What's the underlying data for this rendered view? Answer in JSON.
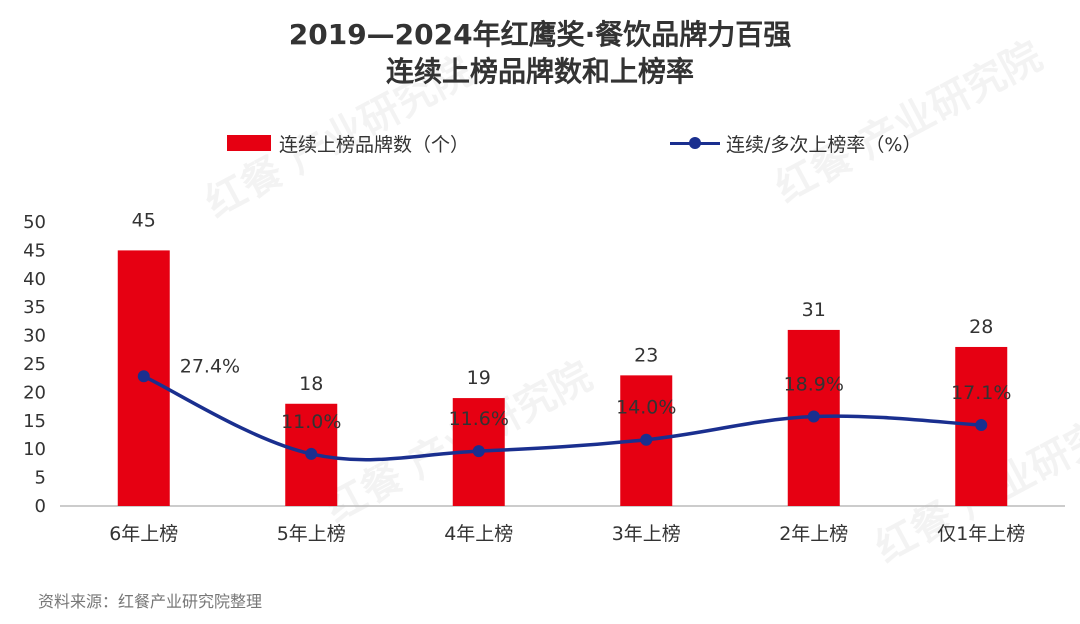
{
  "title_line1": "2019—2024年红鹰奖·餐饮品牌力百强",
  "title_line2": "连续上榜品牌数和上榜率",
  "source": "资料来源：红餐产业研究院整理",
  "watermark": "红餐 产业研究院",
  "colors": {
    "bar": "#e60012",
    "line": "#1a2f8f",
    "axis": "#bbbbbb",
    "text": "#333333"
  },
  "chart_data": {
    "type": "bar",
    "categories": [
      "6年上榜",
      "5年上榜",
      "4年上榜",
      "3年上榜",
      "2年上榜",
      "仅1年上榜"
    ],
    "ylim": [
      0,
      50
    ],
    "yticks": [
      0,
      5,
      10,
      15,
      20,
      25,
      30,
      35,
      40,
      45,
      50
    ],
    "grid": false,
    "legend_position": "top",
    "series": [
      {
        "name": "连续上榜品牌数（个）",
        "type": "bar",
        "values": [
          45,
          18,
          19,
          23,
          31,
          28
        ],
        "labels": [
          "45",
          "18",
          "19",
          "23",
          "31",
          "28"
        ]
      },
      {
        "name": "连续/多次上榜率（%）",
        "type": "line",
        "values": [
          27.4,
          11.0,
          11.6,
          14.0,
          18.9,
          17.1
        ],
        "labels": [
          "27.4%",
          "11.0%",
          "11.6%",
          "14.0%",
          "18.9%",
          "17.1%"
        ]
      }
    ]
  }
}
